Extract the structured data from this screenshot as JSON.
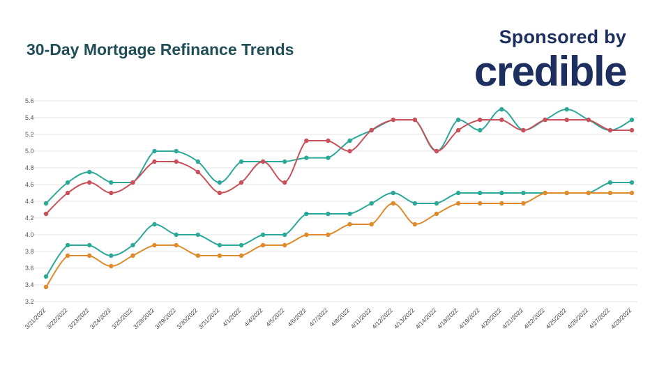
{
  "header": {
    "title": "30-Day Mortgage Refinance Trends",
    "sponsored_label": "Sponsored by",
    "brand": "credible"
  },
  "colors": {
    "title": "#1f4e57",
    "brand": "#1c2f5e",
    "series_teal": "#2aa898",
    "series_red": "#c9505a",
    "series_orange": "#e08a2a"
  },
  "chart_data": {
    "type": "line",
    "title": "30-Day Mortgage Refinance Trends",
    "xlabel": "",
    "ylabel": "",
    "ylim": [
      3.2,
      5.6
    ],
    "yticks": [
      "3.2",
      "3.4",
      "3.6",
      "3.8",
      "4.0",
      "4.2",
      "4.4",
      "4.6",
      "4.8",
      "5.0",
      "5.2",
      "5.4",
      "5.6"
    ],
    "grid": true,
    "categories": [
      "3/21/2022",
      "3/22/2022",
      "3/23/2022",
      "3/24/2022",
      "3/25/2022",
      "3/28/2022",
      "3/29/2022",
      "3/30/2022",
      "3/31/2022",
      "4/1/2022",
      "4/4/2022",
      "4/5/2022",
      "4/6/2022",
      "4/7/2022",
      "4/8/2022",
      "4/11/2022",
      "4/12/2022",
      "4/13/2022",
      "4/14/2022",
      "4/18/2022",
      "4/19/2022",
      "4/20/2022",
      "4/21/2022",
      "4/22/2022",
      "4/25/2022",
      "4/26/2022",
      "4/27/2022",
      "4/28/2022"
    ],
    "series": [
      {
        "color": "#2aa898",
        "values": [
          4.375,
          4.625,
          4.75,
          4.625,
          4.625,
          5.0,
          5.0,
          4.875,
          4.625,
          4.875,
          4.875,
          4.875,
          4.92,
          4.92,
          5.125,
          5.25,
          5.375,
          5.375,
          5.0,
          5.375,
          5.25,
          5.5,
          5.25,
          5.375,
          5.5,
          5.375,
          5.25,
          5.375
        ]
      },
      {
        "color": "#c9505a",
        "values": [
          4.25,
          4.5,
          4.625,
          4.5,
          4.625,
          4.875,
          4.875,
          4.75,
          4.5,
          4.625,
          4.875,
          4.625,
          5.125,
          5.125,
          5.0,
          5.25,
          5.375,
          5.375,
          5.0,
          5.25,
          5.375,
          5.375,
          5.25,
          5.375,
          5.375,
          5.375,
          5.25,
          5.25
        ]
      },
      {
        "color": "#2aa898",
        "values": [
          3.5,
          3.875,
          3.875,
          3.75,
          3.875,
          4.125,
          4.0,
          4.0,
          3.875,
          3.875,
          4.0,
          4.0,
          4.25,
          4.25,
          4.25,
          4.375,
          4.5,
          4.375,
          4.375,
          4.5,
          4.5,
          4.5,
          4.5,
          4.5,
          4.5,
          4.5,
          4.625,
          4.625
        ]
      },
      {
        "color": "#e08a2a",
        "values": [
          3.375,
          3.75,
          3.75,
          3.625,
          3.75,
          3.875,
          3.875,
          3.75,
          3.75,
          3.75,
          3.875,
          3.875,
          4.0,
          4.0,
          4.125,
          4.125,
          4.375,
          4.125,
          4.25,
          4.375,
          4.375,
          4.375,
          4.375,
          4.5,
          4.5,
          4.5,
          4.5,
          4.5
        ]
      }
    ]
  }
}
